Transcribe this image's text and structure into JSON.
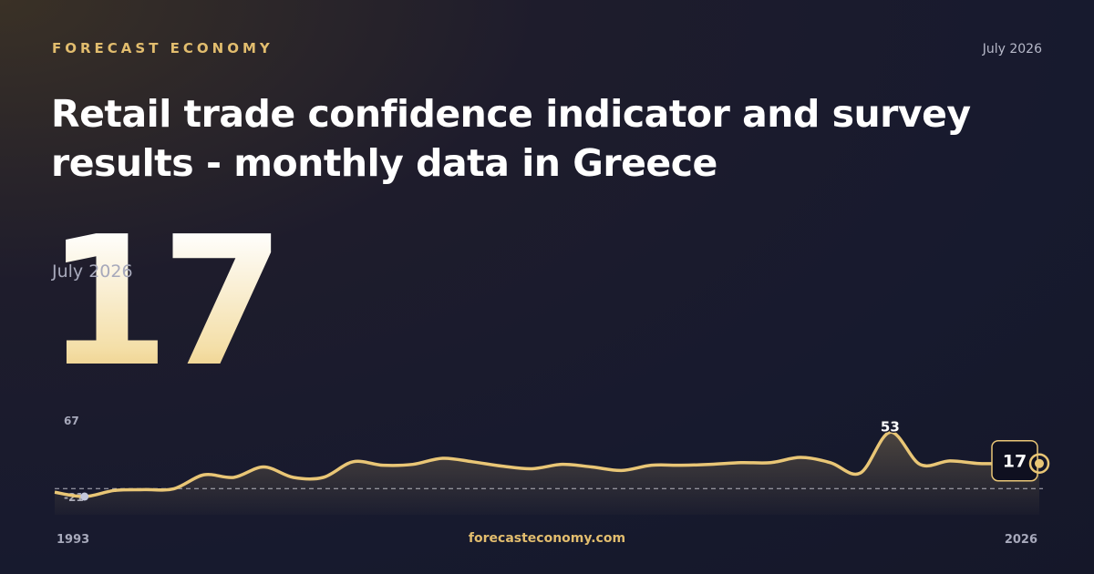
{
  "header": {
    "brand": "FORECAST ECONOMY",
    "date": "July 2026",
    "title": "Retail trade confidence indicator and survey results - monthly data in Greece"
  },
  "footer": {
    "site": "forecasteconomy.com"
  },
  "chart_data": {
    "type": "line",
    "color": "#e9c676",
    "x": [
      1993,
      1994,
      1995,
      1996,
      1997,
      1998,
      1999,
      2000,
      2001,
      2002,
      2003,
      2004,
      2005,
      2006,
      2007,
      2008,
      2009,
      2010,
      2011,
      2012,
      2013,
      2014,
      2015,
      2016,
      2017,
      2018,
      2019,
      2020,
      2021,
      2022,
      2023,
      2024,
      2025,
      2026
    ],
    "values": [
      -16,
      -21,
      -14,
      -13,
      -12,
      4,
      1,
      13,
      1,
      1,
      19,
      15,
      16,
      23,
      19,
      14,
      11,
      16,
      13,
      9,
      15,
      15,
      16,
      18,
      18,
      24,
      18,
      6,
      53,
      16,
      20,
      17,
      17,
      17
    ],
    "xlim": [
      1993,
      2026
    ],
    "xticks": [
      1993,
      2026
    ],
    "ylim": [
      -21,
      67
    ],
    "yticks": [
      -21,
      67
    ]
  }
}
